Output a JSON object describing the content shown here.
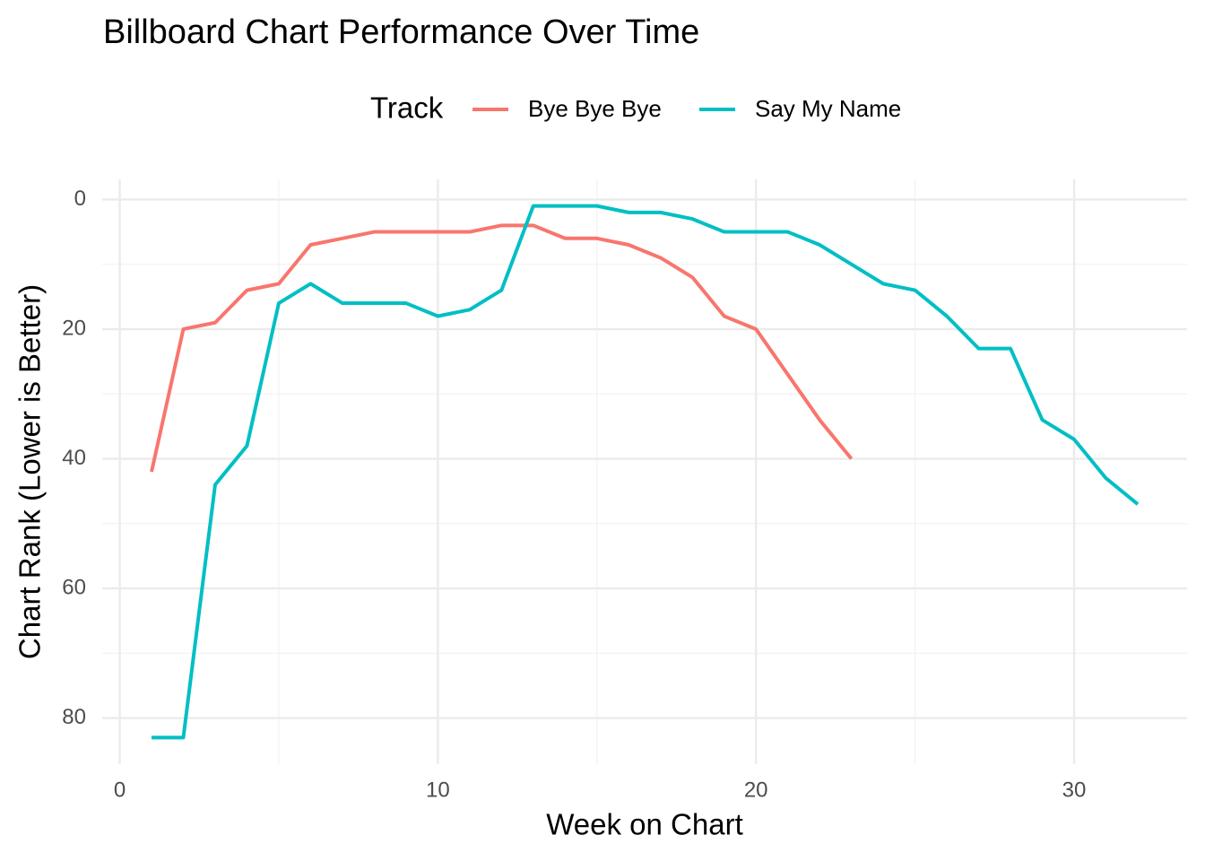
{
  "chart_data": {
    "type": "line",
    "title": "Billboard Chart Performance Over Time",
    "x_label": "Week on Chart",
    "y_label": "Chart Rank (Lower is Better)",
    "legend_title": "Track",
    "legend_position": "top",
    "grid": true,
    "y_reversed": true,
    "xlim": [
      -0.55,
      33.55
    ],
    "xticks": [
      0,
      10,
      20,
      30
    ],
    "minor_xticks": [
      5,
      15,
      25
    ],
    "ylim": [
      -3.1,
      87.1
    ],
    "yticks": [
      0,
      20,
      40,
      60,
      80
    ],
    "minor_yticks": [
      10,
      30,
      50,
      70
    ],
    "series": [
      {
        "name": "Bye Bye Bye",
        "color": "#f8766d",
        "x": [
          1,
          2,
          3,
          4,
          5,
          6,
          7,
          8,
          9,
          10,
          11,
          12,
          13,
          14,
          15,
          16,
          17,
          18,
          19,
          20,
          21,
          22,
          23
        ],
        "values": [
          42,
          20,
          19,
          14,
          13,
          7,
          6,
          5,
          5,
          5,
          5,
          4,
          4,
          6,
          6,
          7,
          9,
          12,
          18,
          20,
          27,
          34,
          40
        ]
      },
      {
        "name": "Say My Name",
        "color": "#00bfc4",
        "x": [
          1,
          2,
          3,
          4,
          5,
          6,
          7,
          8,
          9,
          10,
          11,
          12,
          13,
          14,
          15,
          16,
          17,
          18,
          19,
          20,
          21,
          22,
          23,
          24,
          25,
          26,
          27,
          28,
          29,
          30,
          31,
          32
        ],
        "values": [
          83,
          83,
          44,
          38,
          16,
          13,
          16,
          16,
          16,
          18,
          17,
          14,
          1,
          1,
          1,
          2,
          2,
          3,
          5,
          5,
          5,
          7,
          10,
          13,
          14,
          18,
          23,
          23,
          34,
          37,
          43,
          47
        ]
      }
    ]
  }
}
